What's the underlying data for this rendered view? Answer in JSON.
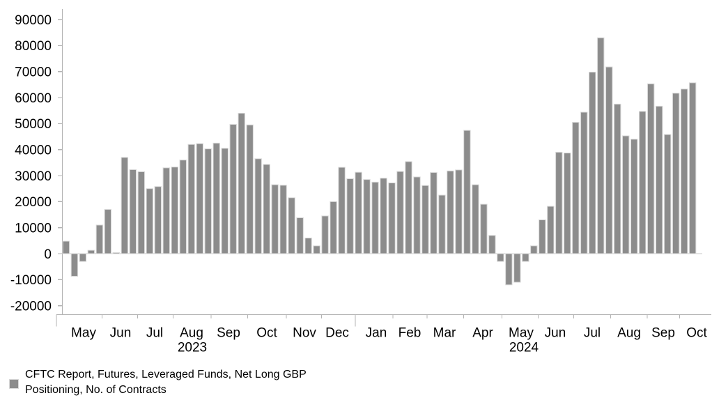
{
  "chart_data": {
    "type": "bar",
    "title": "",
    "series_name": "CFTC Report, Futures, Leveraged Funds, Net Long GBP Positioning, No. of Contracts",
    "values": [
      4800,
      -8700,
      -3000,
      1300,
      11000,
      17000,
      400,
      37000,
      32300,
      31500,
      25000,
      25800,
      33000,
      33300,
      36000,
      42000,
      42300,
      40300,
      42500,
      40500,
      49700,
      54000,
      49500,
      36500,
      34300,
      26500,
      26300,
      21500,
      13800,
      6000,
      3000,
      14500,
      20000,
      33200,
      28800,
      31300,
      28500,
      27500,
      29000,
      27200,
      31600,
      35400,
      29500,
      26200,
      31200,
      22500,
      31800,
      32200,
      47400,
      26500,
      19000,
      7000,
      -3000,
      -12000,
      -11000,
      -3000,
      3000,
      13000,
      18200,
      39000,
      38700,
      50500,
      54400,
      69800,
      83000,
      71800,
      57500,
      45300,
      44000,
      54700,
      65300,
      56700,
      45800,
      61700,
      63300,
      65700
    ],
    "x_axis": {
      "months": [
        "May",
        "Jun",
        "Jul",
        "Aug",
        "Sep",
        "Oct",
        "Nov",
        "Dec",
        "Jan",
        "Feb",
        "Mar",
        "Apr",
        "May",
        "Jun",
        "Jul",
        "Aug",
        "Sep",
        "Oct"
      ],
      "years": [
        "2023",
        "2024"
      ]
    },
    "y_axis": {
      "ticks": [
        90000,
        80000,
        70000,
        60000,
        50000,
        40000,
        30000,
        20000,
        10000,
        0,
        -10000,
        -20000
      ],
      "min": -20000,
      "max": 90000
    },
    "grid": "off",
    "legend_position": "bottom-left",
    "style": {
      "bar_color": "#8c8c8c",
      "bar_border_color": "#d9d9d9",
      "axis_color": "#b3b3b3",
      "zero_line_color": "#c9c9c9",
      "text_color": "#000000",
      "background_color": "#ffffff"
    }
  },
  "legend": {
    "line1": "CFTC Report, Futures, Leveraged Funds, Net Long GBP",
    "line2": "Positioning, No. of Contracts"
  }
}
